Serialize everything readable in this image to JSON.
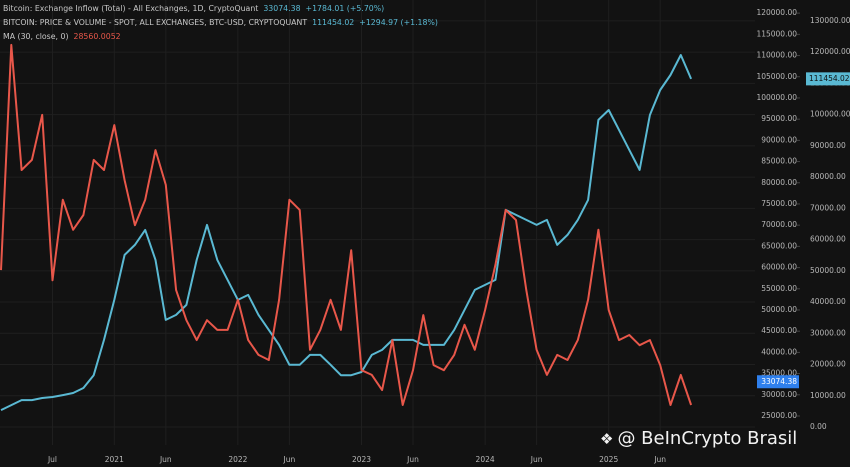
{
  "chart_data": {
    "type": "line",
    "inflow": {
      "name": "Bitcoin: Exchange Inflow (Total) - All Exchanges, 1D, CryptoQuant",
      "last": 33074.38,
      "change": "+1784.01 (+5.70%)",
      "color": "#2f80ed"
    },
    "categories": [
      null,
      null,
      null,
      null,
      null,
      "Jul",
      null,
      null,
      null,
      null,
      null,
      "2021",
      null,
      null,
      null,
      null,
      "Jun",
      null,
      null,
      null,
      null,
      null,
      null,
      "2022",
      null,
      null,
      null,
      null,
      "Jun",
      null,
      null,
      null,
      null,
      null,
      null,
      "2023",
      null,
      null,
      null,
      null,
      "Jun",
      null,
      null,
      null,
      null,
      null,
      null,
      "2024",
      null,
      null,
      null,
      null,
      "Jun",
      null,
      null,
      null,
      null,
      null,
      null,
      "2025",
      null,
      null,
      null,
      null,
      "Jun",
      null,
      null,
      null
    ],
    "series": [
      {
        "name": "BITCOIN: PRICE & VOLUME - SPOT, ALL EXCHANGES, BTC-USD, CRYPTOQUANT",
        "color": "#5ab9d3",
        "axis": "y2",
        "last": 111454.02,
        "change": "+1294.97 (+1.18%)",
        "values": [
          5400,
          7000,
          8600,
          8600,
          9300,
          9600,
          10200,
          10900,
          12500,
          16600,
          27900,
          40700,
          55100,
          58300,
          63100,
          53500,
          34300,
          35900,
          39100,
          53500,
          64700,
          53500,
          47100,
          40700,
          42300,
          35900,
          31100,
          26300,
          19900,
          19900,
          23100,
          23100,
          19900,
          16600,
          16600,
          17600,
          23100,
          24700,
          27900,
          27900,
          27900,
          26300,
          26300,
          26300,
          31100,
          37500,
          43900,
          45500,
          47100,
          69500,
          67900,
          66300,
          64700,
          66300,
          58300,
          61500,
          66300,
          72700,
          98300,
          101500,
          95100,
          88700,
          82300,
          99900,
          107900,
          112700,
          119100,
          111454.02
        ]
      },
      {
        "name": "MA (30, close, 0)",
        "color": "#e8574a",
        "axis": "y",
        "last": 28560.0052,
        "values": [
          59400,
          112500,
          83000,
          85400,
          96000,
          57000,
          76000,
          68900,
          72400,
          85400,
          83000,
          93600,
          80600,
          70000,
          76000,
          87700,
          79500,
          54700,
          47600,
          42900,
          47600,
          45300,
          45300,
          52400,
          42900,
          39400,
          38200,
          52400,
          76000,
          73600,
          40600,
          45300,
          52400,
          45300,
          64100,
          35800,
          34700,
          31100,
          42900,
          27600,
          35800,
          48800,
          37000,
          35800,
          39400,
          46500,
          40600,
          50000,
          60600,
          73600,
          71200,
          54700,
          40600,
          34700,
          39400,
          38200,
          42900,
          52400,
          68900,
          50000,
          42900,
          44100,
          41700,
          42900,
          37000,
          27600,
          34700,
          27600
        ]
      }
    ],
    "ylim": [
      18160,
      123100
    ],
    "yticks": [
      {
        "value": 25000,
        "label": "25000.00"
      },
      {
        "value": 30000,
        "label": "30000.00"
      },
      {
        "value": 35000,
        "label": "35000.00"
      },
      {
        "value": 40000,
        "label": "40000.00"
      },
      {
        "value": 45000,
        "label": "45000.00"
      },
      {
        "value": 50000,
        "label": "50000.00"
      },
      {
        "value": 55000,
        "label": "55000.00"
      },
      {
        "value": 60000,
        "label": "60000.00"
      },
      {
        "value": 65000,
        "label": "65000.00"
      },
      {
        "value": 70000,
        "label": "70000.00"
      },
      {
        "value": 75000,
        "label": "75000.00"
      },
      {
        "value": 80000,
        "label": "80000.00"
      },
      {
        "value": 85000,
        "label": "85000.00"
      },
      {
        "value": 90000,
        "label": "90000.00"
      },
      {
        "value": 95000,
        "label": "95000.00"
      },
      {
        "value": 100000,
        "label": "100000.00"
      },
      {
        "value": 105000,
        "label": "105000.00"
      },
      {
        "value": 110000,
        "label": "110000.00"
      },
      {
        "value": 115000,
        "label": "115000.00"
      },
      {
        "value": 120000,
        "label": "120000.00"
      }
    ],
    "y2lim": [
      -5760,
      136700
    ],
    "y2ticks": [
      {
        "value": 0,
        "label": "0.00"
      },
      {
        "value": 10000,
        "label": "10000.00"
      },
      {
        "value": 20000,
        "label": "20000.00"
      },
      {
        "value": 30000,
        "label": "30000.00"
      },
      {
        "value": 40000,
        "label": "40000.00"
      },
      {
        "value": 50000,
        "label": "50000.00"
      },
      {
        "value": 60000,
        "label": "60000.00"
      },
      {
        "value": 70000,
        "label": "70000.00"
      },
      {
        "value": 80000,
        "label": "80000.00"
      },
      {
        "value": 90000,
        "label": "90000.00"
      },
      {
        "value": 100000,
        "label": "100000.00"
      },
      {
        "value": 110000,
        "label": "110000.00"
      },
      {
        "value": 120000,
        "label": "120000.00"
      },
      {
        "value": 130000,
        "label": "130000.00"
      }
    ],
    "grid": true,
    "watermark": "@ BeInCrypto Brasil"
  }
}
